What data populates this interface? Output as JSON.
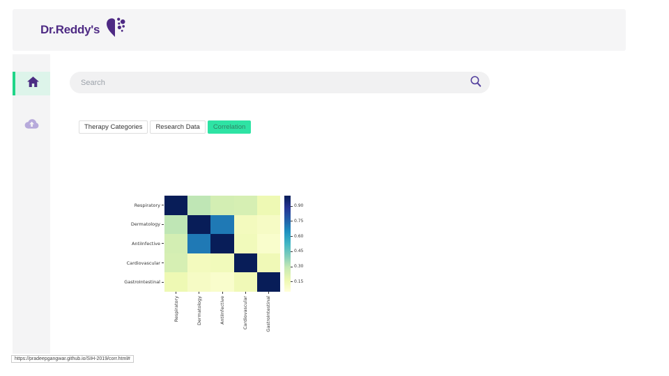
{
  "brand": {
    "name": "Dr.Reddy's"
  },
  "sidebar": {
    "items": [
      {
        "id": "home",
        "icon": "home-icon",
        "active": true
      },
      {
        "id": "upload",
        "icon": "cloud-upload-icon",
        "active": false
      }
    ]
  },
  "search": {
    "placeholder": "Search",
    "value": ""
  },
  "tabs": [
    {
      "label": "Therapy Categories",
      "active": false
    },
    {
      "label": "Research Data",
      "active": false
    },
    {
      "label": "Correlation",
      "active": true
    }
  ],
  "statusbar": {
    "url": "https://pradeepgangwar.github.io/SIH-2019/corr.html#"
  },
  "colors": {
    "brand_purple": "#4e2a84",
    "accent_green": "#1fd588",
    "active_item_bg": "#ddf4ea",
    "tab_active_bg": "#2ee3a4",
    "tab_active_text": "#2f8466",
    "header_bg": "#f5f5f6",
    "sidebar_bg": "#f4f4f5",
    "search_bg": "#f1f1f2",
    "icon_purple": "#4b2d83",
    "icon_muted": "#b7aadb"
  },
  "chart_data": {
    "type": "heatmap",
    "title": "",
    "xlabel": "",
    "ylabel": "",
    "categories": [
      "Respiratory",
      "Dermatology",
      "AntiInfective",
      "Cardiovascular",
      "GastroIntestinal"
    ],
    "matrix": [
      [
        1.0,
        0.3,
        0.25,
        0.24,
        0.16
      ],
      [
        0.3,
        1.0,
        0.7,
        0.13,
        0.11
      ],
      [
        0.25,
        0.7,
        1.0,
        0.14,
        0.09
      ],
      [
        0.24,
        0.13,
        0.14,
        1.0,
        0.15
      ],
      [
        0.16,
        0.11,
        0.09,
        0.15,
        1.0
      ]
    ],
    "vmin": 0.05,
    "vmax": 1.0,
    "colorbar_ticks": [
      0.9,
      0.75,
      0.6,
      0.45,
      0.3,
      0.15
    ],
    "colormap": "YlGnBu",
    "colormap_colors_low_to_high": [
      "#ffffd9",
      "#edf8b1",
      "#c7e9b4",
      "#7fcdbb",
      "#41b6c4",
      "#1d91c0",
      "#225ea8",
      "#253494",
      "#081d58"
    ],
    "legend_position": "right-colorbar",
    "grid": false,
    "x_tick_rotation_deg": 90
  }
}
